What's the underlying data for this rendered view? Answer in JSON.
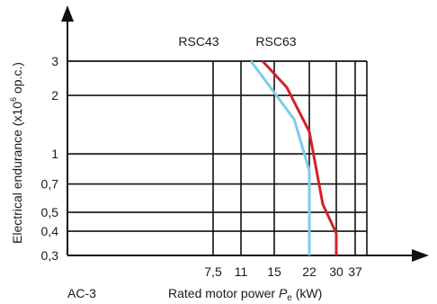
{
  "chart_data": {
    "type": "line",
    "title": "",
    "xlabel": "Rated motor power Pe (kW)",
    "xlabel_main": "Rated motor power ",
    "xlabel_symbol": "P",
    "xlabel_subscript": "e",
    "xlabel_unit": " (kW)",
    "ylabel": "Electrical endurance (x10^6 op.c.)",
    "ylabel_pre": "Electrical endurance (x10",
    "ylabel_sup": "6",
    "ylabel_post": " op.c.)",
    "category_note": "AC-3",
    "x_ticks": [
      {
        "value": 7.5,
        "label": "7,5"
      },
      {
        "value": 11,
        "label": "11"
      },
      {
        "value": 15,
        "label": "15"
      },
      {
        "value": 22,
        "label": "22"
      },
      {
        "value": 30,
        "label": "30"
      },
      {
        "value": 37,
        "label": "37"
      }
    ],
    "y_ticks": [
      {
        "value": 0.3,
        "label": "0,3"
      },
      {
        "value": 0.4,
        "label": "0,4"
      },
      {
        "value": 0.5,
        "label": "0,5"
      },
      {
        "value": 0.7,
        "label": "0,7"
      },
      {
        "value": 1,
        "label": "1"
      },
      {
        "value": 2,
        "label": "2"
      },
      {
        "value": 3,
        "label": "3"
      }
    ],
    "y_scale": "log",
    "x_scale": "nonlinear",
    "grid": true,
    "series": [
      {
        "name": "RSC43",
        "color": "#7ecbea",
        "points": [
          [
            12.2,
            3
          ],
          [
            19,
            1.5
          ],
          [
            22,
            0.82
          ],
          [
            22,
            0.3
          ]
        ]
      },
      {
        "name": "RSC63",
        "color": "#d4202a",
        "points": [
          [
            13.6,
            3
          ],
          [
            17.5,
            2.2
          ],
          [
            22,
            1.3
          ],
          [
            26,
            0.55
          ],
          [
            30,
            0.39
          ],
          [
            30,
            0.3
          ]
        ]
      }
    ]
  }
}
